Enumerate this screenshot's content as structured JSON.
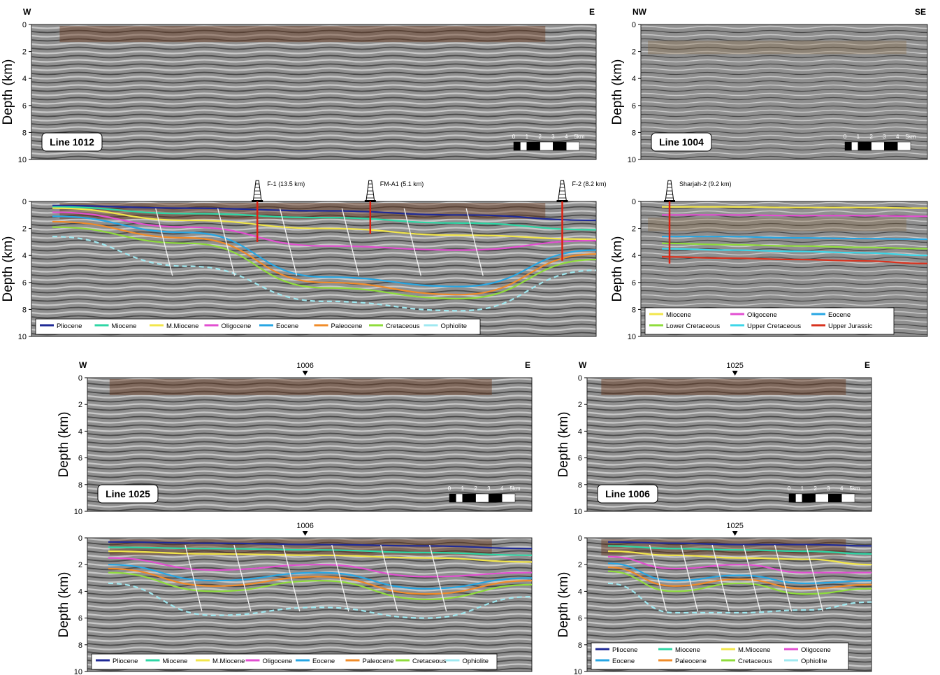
{
  "figure": {
    "y_axis_label": "Depth (km)",
    "y_ticks": [
      "0",
      "2",
      "4",
      "6",
      "8",
      "10"
    ],
    "scale_bar": {
      "labels": [
        "0",
        "1",
        "2",
        "3",
        "4",
        "5km"
      ]
    },
    "panels": [
      {
        "id": "p1012a",
        "line_label": "Line 1012",
        "left_label": "W",
        "right_label": "E",
        "interpreted": false,
        "style": "strong"
      },
      {
        "id": "p1004a",
        "line_label": "Line 1004",
        "left_label": "NW",
        "right_label": "SE",
        "interpreted": false,
        "style": "weak"
      },
      {
        "id": "p1012b",
        "interpreted": true,
        "style": "strong",
        "wells": [
          {
            "label": "F-1 (13.5 km)",
            "position": 0.4,
            "depth_km": 3.0
          },
          {
            "label": "FM-A1 (5.1 km)",
            "position": 0.6,
            "depth_km": 2.4
          },
          {
            "label": "F-2 (8.2 km)",
            "position": 0.94,
            "depth_km": 4.4
          }
        ],
        "legend": [
          {
            "name": "Pliocene",
            "color": "#1f2a96"
          },
          {
            "name": "Miocene",
            "color": "#2fd6a5"
          },
          {
            "name": "M.Miocene",
            "color": "#f2e64b"
          },
          {
            "name": "Oligocene",
            "color": "#e24fd1"
          },
          {
            "name": "Eocene",
            "color": "#27a6e3"
          },
          {
            "name": "Paleocene",
            "color": "#f08c2a"
          },
          {
            "name": "Cretaceous",
            "color": "#8fdc3c"
          },
          {
            "name": "Ophiolite",
            "color": "#9fe8f0"
          }
        ]
      },
      {
        "id": "p1004b",
        "interpreted": true,
        "style": "weak",
        "wells": [
          {
            "label": "Sharjah-2 (9.2 km)",
            "position": 0.1,
            "depth_km": 4.6
          }
        ],
        "legend": [
          {
            "name": "Miocene",
            "color": "#f2e64b"
          },
          {
            "name": "Oligocene",
            "color": "#e24fd1"
          },
          {
            "name": "Eocene",
            "color": "#27a6e3"
          },
          {
            "name": "Lower Cretaceous",
            "color": "#8fdc3c"
          },
          {
            "name": "Upper Cretaceous",
            "color": "#3dd6e8"
          },
          {
            "name": "Upper Jurassic",
            "color": "#d8321e"
          }
        ]
      },
      {
        "id": "p1025a",
        "line_label": "Line 1025",
        "left_label": "W",
        "right_label": "E",
        "interpreted": false,
        "style": "strong",
        "tie": {
          "label": "1006",
          "position": 0.49
        }
      },
      {
        "id": "p1006a",
        "line_label": "Line 1006",
        "left_label": "W",
        "right_label": "E",
        "interpreted": false,
        "style": "strong",
        "tie": {
          "label": "1025",
          "position": 0.52
        }
      },
      {
        "id": "p1025b",
        "interpreted": true,
        "style": "strong",
        "tie": {
          "label": "1006",
          "position": 0.49
        },
        "legend": [
          {
            "name": "Pliocene",
            "color": "#1f2a96"
          },
          {
            "name": "Miocene",
            "color": "#2fd6a5"
          },
          {
            "name": "M.Miocene",
            "color": "#f2e64b"
          },
          {
            "name": "Oligocene",
            "color": "#e24fd1"
          },
          {
            "name": "Eocene",
            "color": "#27a6e3"
          },
          {
            "name": "Paleocene",
            "color": "#f08c2a"
          },
          {
            "name": "Cretaceous",
            "color": "#8fdc3c"
          },
          {
            "name": "Ophiolite",
            "color": "#9fe8f0"
          }
        ]
      },
      {
        "id": "p1006b",
        "interpreted": true,
        "style": "strong",
        "tie": {
          "label": "1025",
          "position": 0.52
        },
        "legend": [
          {
            "name": "Pliocene",
            "color": "#1f2a96"
          },
          {
            "name": "Miocene",
            "color": "#2fd6a5"
          },
          {
            "name": "M.Miocene",
            "color": "#f2e64b"
          },
          {
            "name": "Oligocene",
            "color": "#e24fd1"
          },
          {
            "name": "Eocene",
            "color": "#27a6e3"
          },
          {
            "name": "Paleocene",
            "color": "#f08c2a"
          },
          {
            "name": "Cretaceous",
            "color": "#8fdc3c"
          },
          {
            "name": "Ophiolite",
            "color": "#9fe8f0"
          }
        ]
      }
    ]
  }
}
